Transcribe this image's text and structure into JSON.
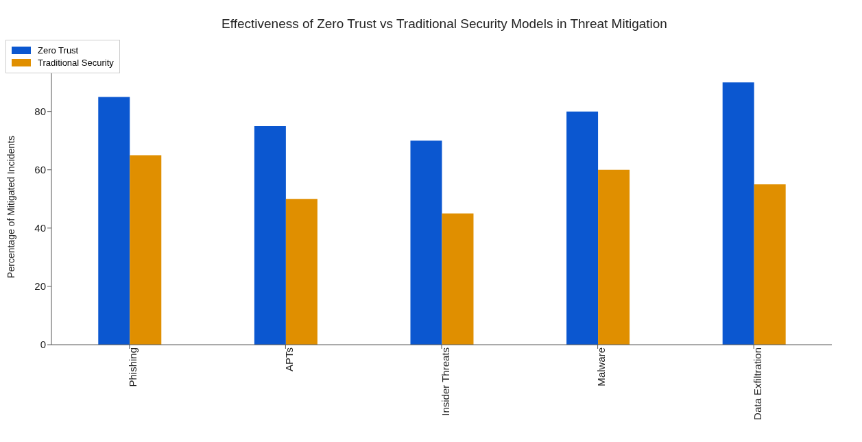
{
  "chart_data": {
    "type": "bar",
    "title": "Effectiveness of Zero Trust vs Traditional Security Models in Threat Mitigation",
    "ylabel": "Percentage of Mitigated Incidents",
    "categories": [
      "Phishing",
      "APTs",
      "Insider Threats",
      "Malware",
      "Data Exfiltration"
    ],
    "series": [
      {
        "name": "Zero Trust",
        "color": "#0b57d0",
        "values": [
          85,
          75,
          70,
          80,
          90
        ]
      },
      {
        "name": "Traditional Security",
        "color": "#e08f00",
        "values": [
          65,
          50,
          45,
          60,
          55
        ]
      }
    ],
    "ylim": [
      0,
      94.5
    ],
    "yticks": [
      0,
      20,
      40,
      60,
      80
    ],
    "grid": false,
    "legend": "top"
  }
}
